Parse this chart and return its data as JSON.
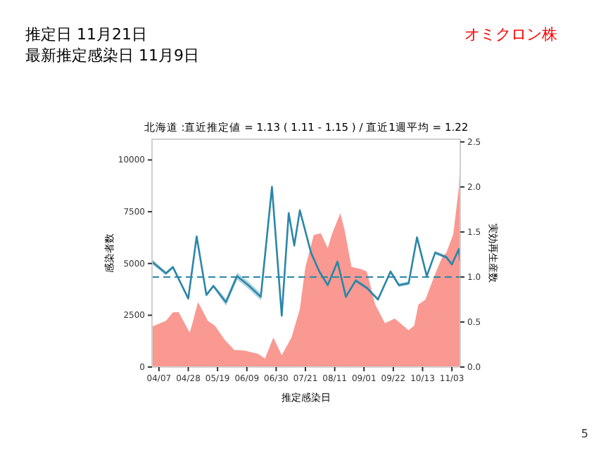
{
  "chart_data": {
    "type": "area",
    "title": "北海道 :直近推定値 = 1.13 ( 1.11 - 1.15 ) / 直近1週平均 = 1.22",
    "xlabel": "推定感染日",
    "ylabel": "感染者数",
    "y2label": "実効再生産数",
    "annotations": [
      "推定日 11月21日",
      "最新推定感染日 11月9日",
      "オミクロン株",
      "5"
    ],
    "xlim": [
      "--04-02",
      "--11-09"
    ],
    "xticks": [
      {
        "value": "--04-07",
        "label": "04/07"
      },
      {
        "value": "--04-28",
        "label": "04/28"
      },
      {
        "value": "--05-19",
        "label": "05/19"
      },
      {
        "value": "--06-09",
        "label": "06/09"
      },
      {
        "value": "--06-30",
        "label": "06/30"
      },
      {
        "value": "--07-21",
        "label": "07/21"
      },
      {
        "value": "--08-11",
        "label": "08/11"
      },
      {
        "value": "--09-01",
        "label": "09/01"
      },
      {
        "value": "--09-22",
        "label": "09/22"
      },
      {
        "value": "--10-13",
        "label": "10/13"
      },
      {
        "value": "--11-03",
        "label": "11/03"
      }
    ],
    "ylim": [
      0,
      11000
    ],
    "yticks": [
      0,
      2500,
      5000,
      7500,
      10000
    ],
    "y2lim": [
      0,
      2.53
    ],
    "y2ticks": [
      {
        "value": 0,
        "label": "0.0"
      },
      {
        "value": 0.5,
        "label": "0.5"
      },
      {
        "value": 1,
        "label": "1.0"
      },
      {
        "value": 1.5,
        "label": "1.5"
      },
      {
        "value": 2,
        "label": "2.0"
      },
      {
        "value": 2.5,
        "label": "2.5"
      }
    ],
    "ref_lines": [
      {
        "axis": "y2",
        "value": 1,
        "color": "#2a86a8",
        "line_style": "dashed"
      }
    ],
    "grid": false,
    "series": [
      {
        "color": "#f8877f",
        "x": [
          "--04-02",
          "--04-12",
          "--04-17",
          "--04-21",
          "--04-29",
          "--05-01",
          "--05-05",
          "--05-12",
          "--05-17",
          "--05-24",
          "--05-31",
          "--06-07",
          "--06-17",
          "--06-22",
          "--06-28",
          "--07-04",
          "--07-11",
          "--07-17",
          "--07-21",
          "--07-27",
          "--08-01",
          "--08-06",
          "--08-09",
          "--08-15",
          "--08-18",
          "--08-23",
          "--08-30",
          "--09-03",
          "--09-09",
          "--09-16",
          "--09-23",
          "--10-03",
          "--10-07",
          "--10-10",
          "--10-15",
          "--10-22",
          "--10-27",
          "--10-30",
          "--11-04",
          "--11-08",
          "--11-09"
        ],
        "values": [
          1950,
          2230,
          2640,
          2660,
          1660,
          2110,
          3140,
          2230,
          2000,
          1320,
          820,
          800,
          640,
          410,
          1430,
          570,
          1430,
          2800,
          4840,
          6370,
          6460,
          5740,
          6420,
          7430,
          6640,
          4840,
          4730,
          4610,
          3020,
          2110,
          2340,
          1770,
          2000,
          3020,
          3250,
          4500,
          5300,
          5520,
          6420,
          8670,
          10020
        ]
      },
      {
        "type": "line",
        "axis": "y2",
        "color": "#2a86a8",
        "x": [
          "--04-02",
          "--04-12",
          "--04-17",
          "--04-28",
          "--05-04",
          "--05-11",
          "--05-16",
          "--05-25",
          "--06-02",
          "--06-10",
          "--06-19",
          "--06-27",
          "--07-04",
          "--07-09",
          "--07-13",
          "--07-17",
          "--07-25",
          "--07-31",
          "--08-06",
          "--08-13",
          "--08-19",
          "--08-26",
          "--09-03",
          "--09-11",
          "--09-20",
          "--09-26",
          "--10-03",
          "--10-09",
          "--10-16",
          "--10-22",
          "--10-30",
          "--11-03",
          "--11-08",
          "--11-09"
        ],
        "values": [
          1.17,
          1.04,
          1.11,
          0.76,
          1.45,
          0.8,
          0.9,
          0.72,
          1.01,
          0.91,
          0.78,
          2.0,
          0.57,
          1.71,
          1.35,
          1.74,
          1.27,
          1.06,
          0.91,
          1.17,
          0.78,
          0.96,
          0.88,
          0.75,
          1.06,
          0.91,
          0.93,
          1.44,
          1.01,
          1.27,
          1.22,
          1.14,
          1.31,
          1.17
        ],
        "lower": [
          1.14,
          1.02,
          1.09,
          0.74,
          1.42,
          0.78,
          0.88,
          0.68,
          0.97,
          0.87,
          0.74,
          1.95,
          0.54,
          1.68,
          1.32,
          1.71,
          1.25,
          1.04,
          0.89,
          1.15,
          0.76,
          0.94,
          0.86,
          0.73,
          1.04,
          0.89,
          0.91,
          1.42,
          0.99,
          1.25,
          1.2,
          1.12,
          1.29,
          1.15
        ],
        "upper": [
          1.2,
          1.06,
          1.13,
          0.78,
          1.48,
          0.82,
          0.92,
          0.76,
          1.05,
          0.95,
          0.82,
          2.05,
          0.6,
          1.74,
          1.38,
          1.77,
          1.29,
          1.08,
          0.93,
          1.19,
          0.8,
          0.98,
          0.9,
          0.77,
          1.08,
          0.93,
          0.95,
          1.46,
          1.03,
          1.29,
          1.24,
          1.16,
          1.33,
          1.19
        ]
      }
    ]
  }
}
